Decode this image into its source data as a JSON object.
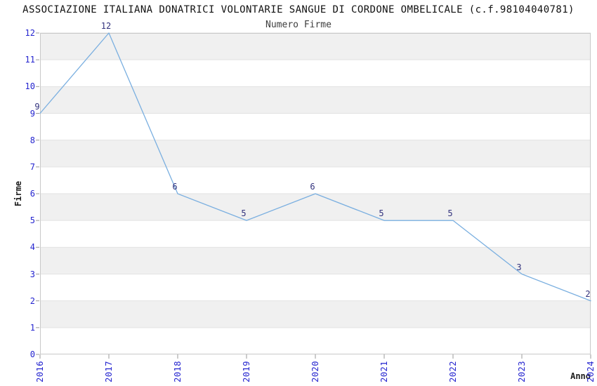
{
  "chart_data": {
    "type": "line",
    "title": "ASSOCIAZIONE ITALIANA DONATRICI VOLONTARIE SANGUE DI CORDONE OMBELICALE (c.f.98104040781)",
    "subtitle": "Numero Firme",
    "xlabel": "Anno",
    "ylabel": "Firme",
    "categories": [
      "2016",
      "2017",
      "2018",
      "2019",
      "2020",
      "2021",
      "2022",
      "2023",
      "2024"
    ],
    "values": [
      9,
      12,
      6,
      5,
      6,
      5,
      5,
      3,
      2
    ],
    "ylim": [
      0,
      12
    ],
    "ytick_step": 1,
    "legend": "none",
    "grid": "horizontal-bands-alternating",
    "colors": {
      "line": "#7aafe0",
      "tick_label": "#2424cf",
      "data_label": "#32327d",
      "band_gray": "#f0f0f0",
      "band_white": "#ffffff",
      "gridline": "#e2e2e2",
      "spine": "#c8c8c8",
      "tick_mark": "#999999",
      "title": "#111111",
      "subtitle": "#3d3d3d",
      "axis_label": "#1c1c1c"
    }
  }
}
